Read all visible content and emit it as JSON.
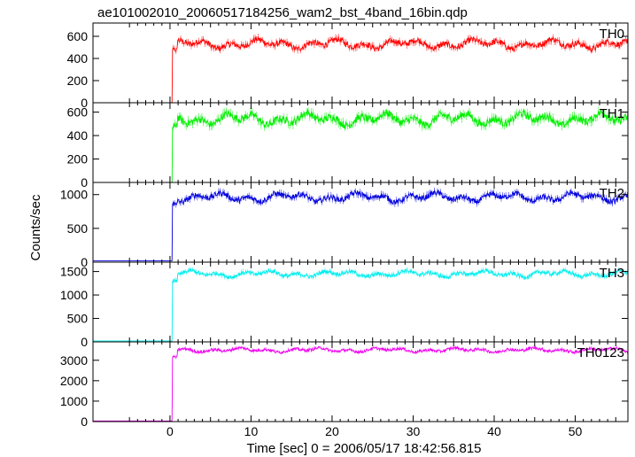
{
  "chart_data": {
    "type": "line",
    "title": "ae101002010_20060517184256_wam2_bst_4band_16bin.qdp",
    "xlabel": "Time [sec] 0 = 2006/05/17 18:42:56.815",
    "ylabel": "Counts/sec",
    "xlim": [
      -9.5,
      56.5
    ],
    "x_ticks": [
      0,
      10,
      20,
      30,
      40,
      50
    ],
    "grid": false,
    "burst_onset_sec": 0.3,
    "panels": [
      {
        "name": "TH0",
        "color": "#ff0000",
        "ylim": [
          0,
          720
        ],
        "y_ticks": [
          0,
          200,
          400,
          600
        ],
        "pre_level": 0,
        "post_level": 530,
        "noise": 45
      },
      {
        "name": "TH1",
        "color": "#00ee00",
        "ylim": [
          0,
          680
        ],
        "y_ticks": [
          0,
          200,
          400,
          600
        ],
        "pre_level": 0,
        "post_level": 540,
        "noise": 55
      },
      {
        "name": "TH2",
        "color": "#0000dd",
        "ylim": [
          0,
          1180
        ],
        "y_ticks": [
          0,
          500,
          1000
        ],
        "pre_level": 20,
        "post_level": 960,
        "noise": 70
      },
      {
        "name": "TH3",
        "color": "#00eeee",
        "ylim": [
          0,
          1700
        ],
        "y_ticks": [
          0,
          500,
          1000,
          1500
        ],
        "pre_level": 20,
        "post_level": 1450,
        "noise": 70
      },
      {
        "name": "TH0123",
        "color": "#ee00ee",
        "ylim": [
          0,
          3900
        ],
        "y_ticks": [
          0,
          1000,
          2000,
          3000
        ],
        "pre_level": 30,
        "post_level": 3500,
        "noise": 110
      }
    ]
  }
}
